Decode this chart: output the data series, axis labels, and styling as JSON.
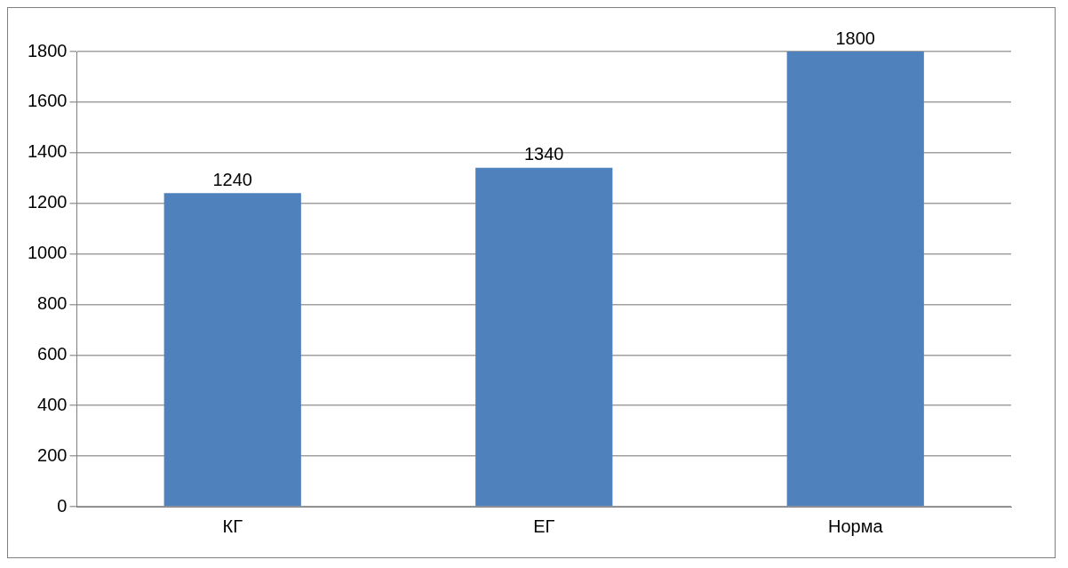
{
  "chart_data": {
    "type": "bar",
    "categories": [
      "КГ",
      "ЕГ",
      "Норма"
    ],
    "values": [
      1240,
      1340,
      1800
    ],
    "color": "#4f81bd",
    "ylim": [
      0,
      1800
    ],
    "yticks": [
      0,
      200,
      400,
      600,
      800,
      1000,
      1200,
      1400,
      1600,
      1800
    ],
    "grid": "y",
    "data_labels": true
  }
}
